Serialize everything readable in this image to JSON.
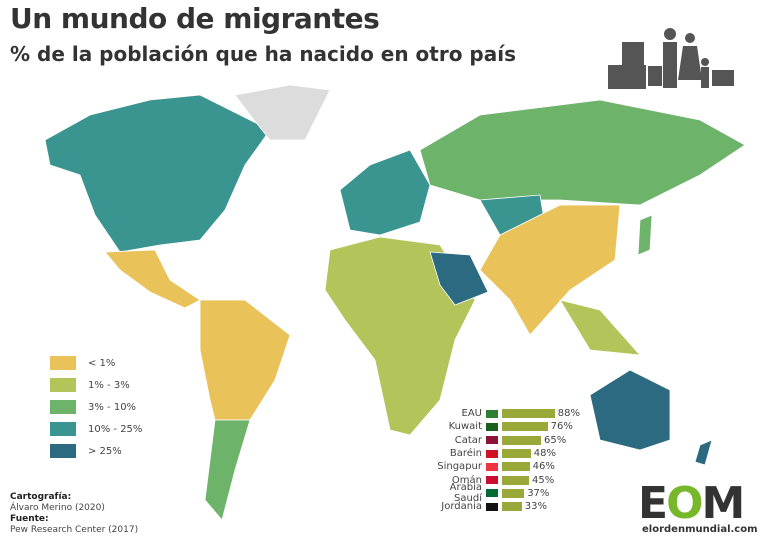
{
  "title": "Un mundo de migrantes",
  "subtitle": "% de la población que ha nacido en otro país",
  "legend": [
    {
      "label": "< 1%",
      "color": "#e9c35a"
    },
    {
      "label": "1% - 3%",
      "color": "#b3c55a"
    },
    {
      "label": "3% - 10%",
      "color": "#6db46a"
    },
    {
      "label": "10% - 25%",
      "color": "#3a9490"
    },
    {
      "label": "> 25%",
      "color": "#2b6a80"
    }
  ],
  "credits": {
    "cartography_label": "Cartografía:",
    "cartography": "Álvaro Merino (2020)",
    "source_label": "Fuente:",
    "source": "Pew Research Center (2017)"
  },
  "chart_data": {
    "type": "bar",
    "title": "",
    "categories": [
      "EAU",
      "Kuwait",
      "Catar",
      "Baréin",
      "Singapur",
      "Omán",
      "Arabia Saudí",
      "Jordania"
    ],
    "values": [
      88,
      76,
      65,
      48,
      46,
      45,
      37,
      33
    ],
    "labels": [
      "88%",
      "76%",
      "65%",
      "48%",
      "46%",
      "45%",
      "37%",
      "33%"
    ],
    "bar_color": "#9aa83a"
  },
  "logo": {
    "text": "EOM",
    "url": "elordenmundial.com"
  }
}
